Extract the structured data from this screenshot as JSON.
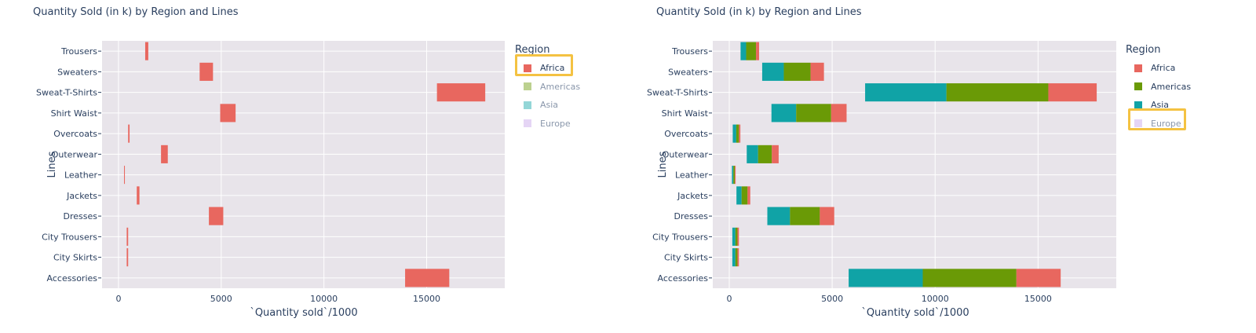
{
  "colors": {
    "Africa": "#e8675f",
    "Americas": "#6a9a06",
    "Asia": "#10a3a6",
    "Europe": "#c5a2e8",
    "highlight": "#f4c242",
    "plot_bg": "#e8e4ea",
    "grid": "#ffffff"
  },
  "panels": [
    {
      "title": "Quantity Sold (in k) by Region and Lines",
      "legend": {
        "title": "Region",
        "items": [
          {
            "label": "Africa",
            "state": "selected"
          },
          {
            "label": "Americas",
            "state": "dim"
          },
          {
            "label": "Asia",
            "state": "dim"
          },
          {
            "label": "Europe",
            "state": "dim"
          }
        ],
        "highlighted": "Africa"
      }
    },
    {
      "title": "Quantity Sold (in k) by Region and Lines",
      "legend": {
        "title": "Region",
        "items": [
          {
            "label": "Africa",
            "state": "normal"
          },
          {
            "label": "Americas",
            "state": "normal"
          },
          {
            "label": "Asia",
            "state": "normal"
          },
          {
            "label": "Europe",
            "state": "dim"
          }
        ],
        "highlighted": "Europe"
      }
    }
  ],
  "chart_data": [
    {
      "type": "bar",
      "orientation": "horizontal",
      "stacked": true,
      "title": "Quantity Sold (in k) by Region and Lines",
      "xlabel": "`Quantity sold`/1000",
      "ylabel": "Lines",
      "xlim": [
        -800,
        18800
      ],
      "xticks": [
        0,
        5000,
        10000,
        15000
      ],
      "xtick_labels": [
        "0",
        "5000",
        "10000",
        "15000"
      ],
      "grid": true,
      "legend_position": "right",
      "categories": [
        "Trousers",
        "Sweaters",
        "Sweat-T-Shirts",
        "Shirt Waist",
        "Overcoats",
        "Outerwear",
        "Leather",
        "Jackets",
        "Dresses",
        "City Trousers",
        "City Skirts",
        "Accessories"
      ],
      "series": [
        {
          "name": "Africa",
          "start": [
            1300,
            3950,
            15500,
            4950,
            470,
            2070,
            270,
            890,
            4400,
            400,
            400,
            13950
          ],
          "end": [
            1450,
            4600,
            17850,
            5700,
            540,
            2400,
            310,
            1020,
            5100,
            470,
            470,
            16100
          ]
        }
      ]
    },
    {
      "type": "bar",
      "orientation": "horizontal",
      "stacked": true,
      "title": "Quantity Sold (in k) by Region and Lines",
      "xlabel": "`Quantity sold`/1000",
      "ylabel": "Lines",
      "xlim": [
        -800,
        18800
      ],
      "xticks": [
        0,
        5000,
        10000,
        15000
      ],
      "xtick_labels": [
        "0",
        "5000",
        "10000",
        "15000"
      ],
      "grid": true,
      "legend_position": "right",
      "categories": [
        "Trousers",
        "Sweaters",
        "Sweat-T-Shirts",
        "Shirt Waist",
        "Overcoats",
        "Outerwear",
        "Leather",
        "Jackets",
        "Dresses",
        "City Trousers",
        "City Skirts",
        "Accessories"
      ],
      "series": [
        {
          "name": "Asia",
          "start": [
            550,
            1600,
            6600,
            2050,
            170,
            850,
            130,
            350,
            1850,
            150,
            150,
            5800
          ],
          "end": [
            820,
            2650,
            10550,
            3250,
            340,
            1400,
            200,
            600,
            2950,
            300,
            300,
            9400
          ]
        },
        {
          "name": "Americas",
          "start": [
            820,
            2650,
            10550,
            3250,
            340,
            1400,
            200,
            600,
            2950,
            300,
            300,
            9400
          ],
          "end": [
            1300,
            3950,
            15500,
            4950,
            470,
            2070,
            270,
            890,
            4400,
            400,
            400,
            13950
          ]
        },
        {
          "name": "Africa",
          "start": [
            1300,
            3950,
            15500,
            4950,
            470,
            2070,
            270,
            890,
            4400,
            400,
            400,
            13950
          ],
          "end": [
            1450,
            4600,
            17850,
            5700,
            540,
            2400,
            310,
            1020,
            5100,
            470,
            470,
            16100
          ]
        }
      ]
    }
  ]
}
